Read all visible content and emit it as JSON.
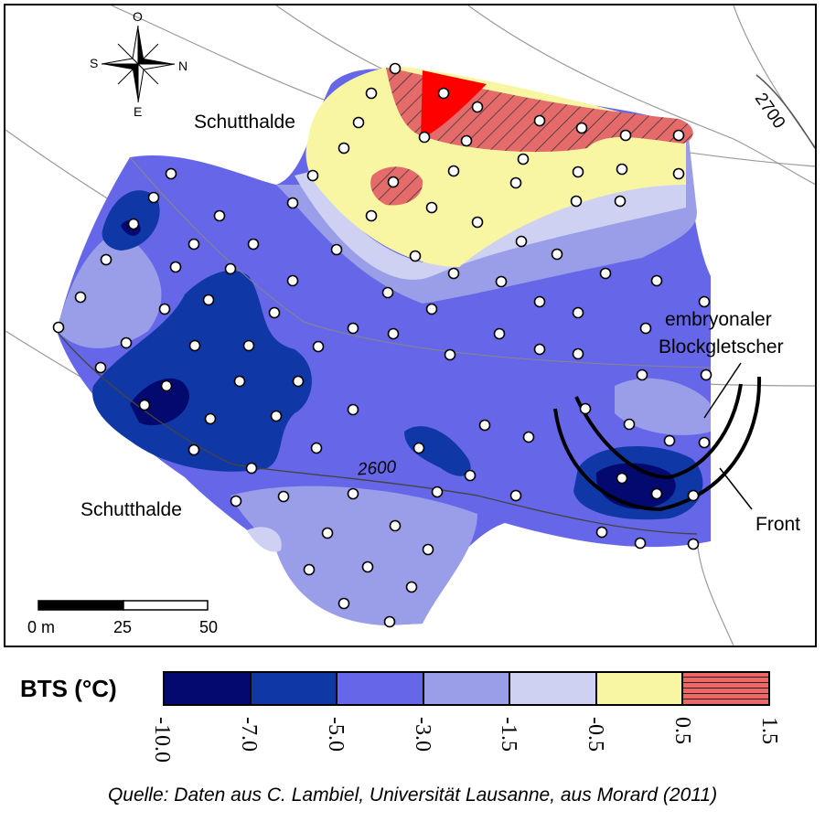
{
  "map": {
    "labels": {
      "scree_top": "Schutthalde",
      "scree_bottom": "Schutthalde",
      "glacier_line1": "embryonaler",
      "glacier_line2": "Blockgletscher",
      "front": "Front",
      "contour_2600": "2600",
      "contour_2700": "2700"
    },
    "compass": {
      "north": "N",
      "south": "S",
      "east": "E",
      "west": "O"
    },
    "scale_bar": {
      "label_0": "0 m",
      "label_25": "25",
      "label_50": "50"
    }
  },
  "legend": {
    "title": "BTS (°C)",
    "ticks": [
      "-10.0",
      "-7.0",
      "-5.0",
      "-3.0",
      "-1.5",
      "-0.5",
      "0.5",
      "1.5"
    ],
    "colors": [
      "#03096e",
      "#0f38a6",
      "#6666e8",
      "#9a9ee8",
      "#cfd1f3",
      "#f8f6a2",
      "#ee6666"
    ]
  },
  "source": "Quelle: Daten aus C. Lambiel, Universität Lausanne, aus Morard (2011)"
}
